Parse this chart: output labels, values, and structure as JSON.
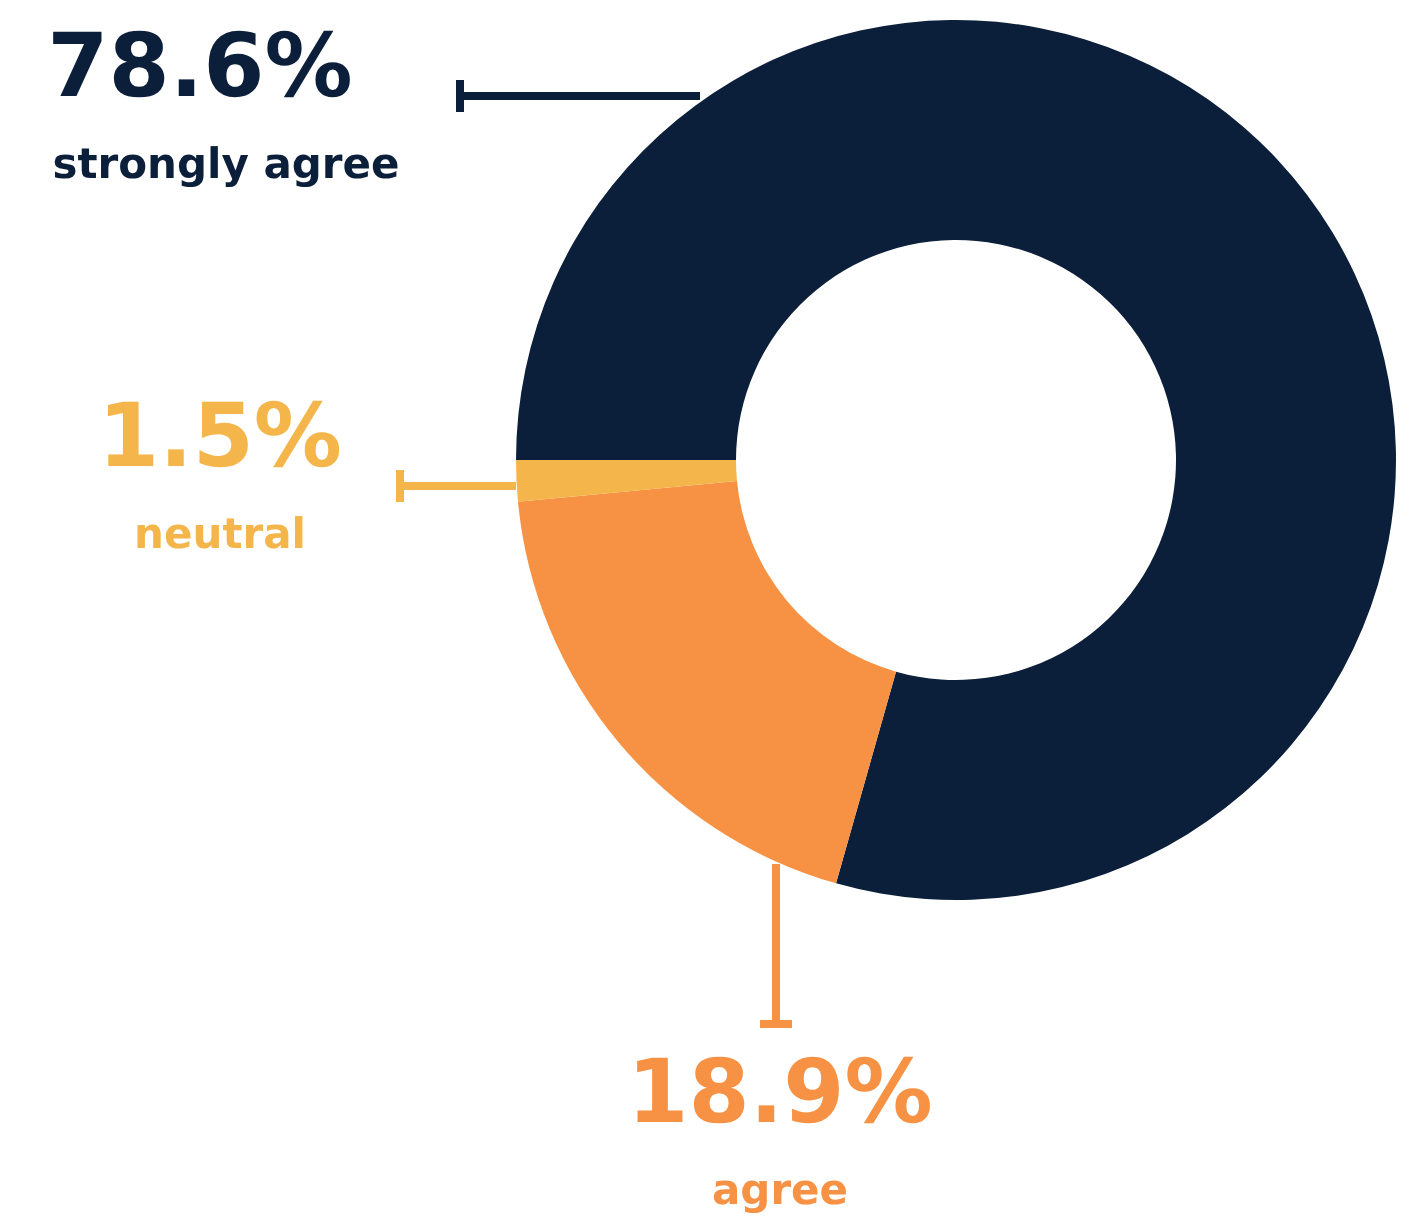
{
  "chart_data": {
    "type": "donut",
    "categories": [
      "strongly agree",
      "agree",
      "neutral"
    ],
    "values": [
      78.6,
      18.9,
      1.5
    ],
    "colors": [
      "#0b1f3a",
      "#f79143",
      "#f4b54a"
    ],
    "value_labels": [
      "78.6%",
      "18.9%",
      "1.5%"
    ]
  }
}
